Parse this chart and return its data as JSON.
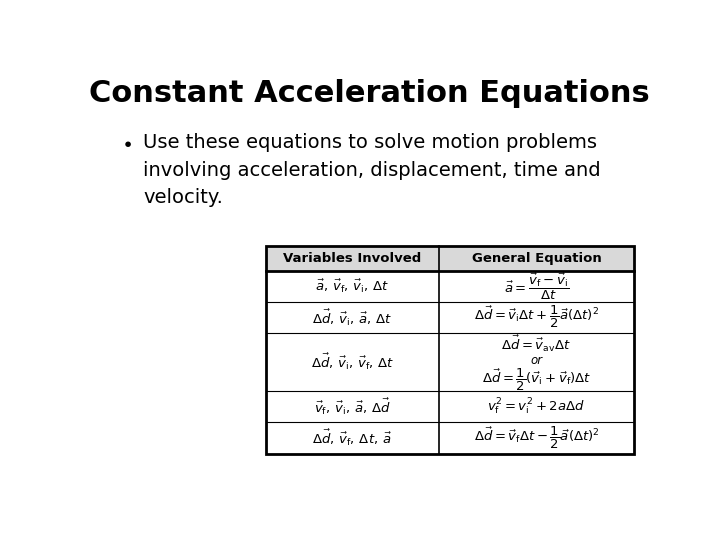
{
  "title": "Constant Acceleration Equations",
  "bullet": "Use these equations to solve motion problems\ninvolving acceleration, displacement, time and\nvelocity.",
  "bg_color": "#ffffff",
  "title_fontsize": 22,
  "bullet_fontsize": 14,
  "table_header_bg": "#d9d9d9",
  "col1_header": "Variables Involved",
  "col2_header": "General Equation",
  "rows": [
    {
      "var": "$\\vec{a},\\, \\vec{v}_{\\mathrm{f}},\\, \\vec{v}_{\\mathrm{i}},\\, \\Delta t$",
      "eq": "$\\vec{a} = \\dfrac{\\vec{v}_{\\mathrm{f}} - \\vec{v}_{\\mathrm{i}}}{\\Delta t}$",
      "multi": false
    },
    {
      "var": "$\\Delta\\vec{d},\\, \\vec{v}_{\\mathrm{i}},\\, \\vec{a},\\, \\Delta t$",
      "eq": "$\\Delta\\vec{d} = \\vec{v}_{\\mathrm{i}}\\Delta t + \\dfrac{1}{2}\\vec{a}(\\Delta t)^{2}$",
      "multi": false
    },
    {
      "var": "$\\Delta\\vec{d},\\, \\vec{v}_{\\mathrm{i}},\\, \\vec{v}_{\\mathrm{f}},\\, \\Delta t$",
      "eq1": "$\\Delta\\vec{d} = \\vec{v}_{\\mathrm{av}}\\Delta t$",
      "eq2": "$\\Delta\\vec{d} = \\dfrac{1}{2}(\\vec{v}_{\\mathrm{i}} + \\vec{v}_{\\mathrm{f}})\\Delta t$",
      "multi": true
    },
    {
      "var": "$\\vec{v}_{\\mathrm{f}},\\, \\vec{v}_{\\mathrm{i}},\\, \\vec{a},\\, \\Delta\\vec{d}$",
      "eq": "$v_{\\mathrm{f}}^{2} = v_{\\mathrm{i}}^{2} + 2a\\Delta d$",
      "multi": false
    },
    {
      "var": "$\\Delta\\vec{d},\\, \\vec{v}_{\\mathrm{f}},\\, \\Delta t,\\, \\vec{a}$",
      "eq": "$\\Delta\\vec{d} = \\vec{v}_{\\mathrm{f}}\\Delta t - \\dfrac{1}{2}\\vec{a}(\\Delta t)^{2}$",
      "multi": false
    }
  ]
}
